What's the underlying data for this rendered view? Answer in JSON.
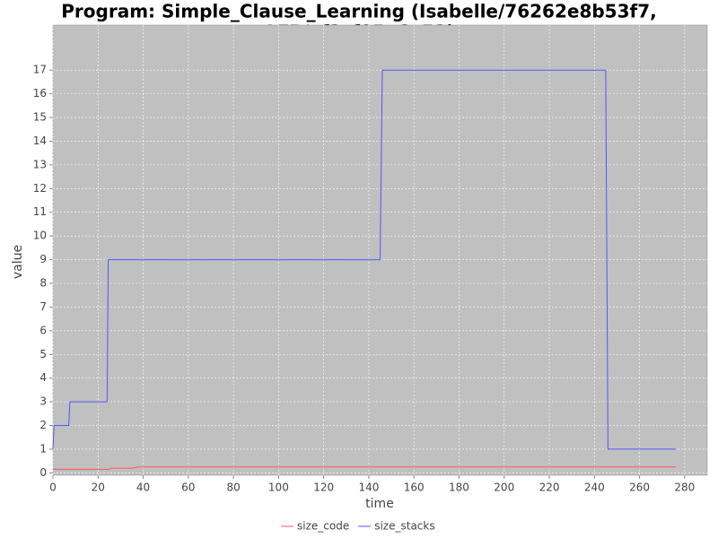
{
  "chart_data": {
    "type": "line",
    "title": "Program: Simple_Clause_Learning (Isabelle/76262e8b53f7,",
    "subtitle": "AFP/af2cf05e6a52)",
    "x_label": "time",
    "y_label": "value",
    "xlim": [
      0,
      290
    ],
    "xticks": [
      0,
      20,
      40,
      60,
      80,
      100,
      120,
      140,
      160,
      180,
      200,
      220,
      240,
      260,
      280
    ],
    "ylim": [
      -0.1,
      18.9
    ],
    "yticks": [
      0,
      1,
      2,
      3,
      4,
      5,
      6,
      7,
      8,
      9,
      10,
      11,
      12,
      13,
      14,
      15,
      16,
      17
    ],
    "grid": true,
    "legend": "bottom",
    "series": [
      {
        "name": "size_code",
        "color": "#ff5555",
        "x": [
          0,
          25,
          26,
          35,
          38,
          276
        ],
        "values": [
          0.15,
          0.15,
          0.2,
          0.2,
          0.25,
          0.25
        ]
      },
      {
        "name": "size_stacks",
        "color": "#5555ff",
        "x": [
          0,
          0.5,
          7,
          7.5,
          24,
          24.5,
          145,
          146,
          242,
          245,
          246,
          276
        ],
        "values": [
          1,
          2,
          2,
          3,
          3,
          9,
          9,
          17,
          17,
          17,
          1,
          1
        ]
      }
    ]
  }
}
